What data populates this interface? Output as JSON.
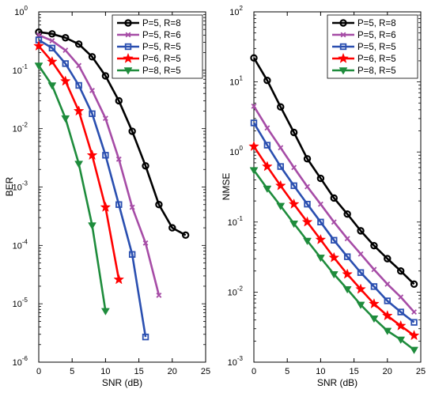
{
  "chart_data": [
    {
      "type": "line",
      "xlabel": "SNR (dB)",
      "ylabel": "BER",
      "xlim": [
        0,
        25
      ],
      "ylim": [
        1e-06,
        1
      ],
      "yscale": "log",
      "xticks": [
        0,
        5,
        10,
        15,
        20,
        25
      ],
      "yticks": [
        {
          "value": 1,
          "base": "10",
          "exp": "0"
        },
        {
          "value": 0.1,
          "base": "10",
          "exp": "-1"
        },
        {
          "value": 0.01,
          "base": "10",
          "exp": "-2"
        },
        {
          "value": 0.001,
          "base": "10",
          "exp": "-3"
        },
        {
          "value": 0.0001,
          "base": "10",
          "exp": "-4"
        },
        {
          "value": 1e-05,
          "base": "10",
          "exp": "-5"
        },
        {
          "value": 1e-06,
          "base": "10",
          "exp": "-6"
        }
      ],
      "legend": "top-right",
      "grid": false,
      "series": [
        {
          "name": "P=5, R=8",
          "color": "#000000",
          "marker": "circle",
          "x": [
            0,
            2,
            4,
            6,
            8,
            10,
            12,
            14,
            16,
            18,
            20,
            22
          ],
          "y": [
            0.45,
            0.42,
            0.36,
            0.28,
            0.17,
            0.08,
            0.03,
            0.009,
            0.0023,
            0.0005,
            0.0002,
            0.00015
          ]
        },
        {
          "name": "P=5, R=6",
          "color": "#a64ca6",
          "marker": "x",
          "x": [
            0,
            2,
            4,
            6,
            8,
            10,
            12,
            14,
            16,
            18
          ],
          "y": [
            0.4,
            0.32,
            0.22,
            0.12,
            0.045,
            0.015,
            0.003,
            0.00045,
            0.00011,
            1.4e-05
          ]
        },
        {
          "name": "P=5, R=5",
          "color": "#2a4fb0",
          "marker": "square",
          "x": [
            0,
            2,
            4,
            6,
            8,
            10,
            12,
            14,
            16
          ],
          "y": [
            0.33,
            0.24,
            0.13,
            0.055,
            0.018,
            0.0035,
            0.0005,
            7e-05,
            2.7e-06
          ]
        },
        {
          "name": "P=6, R=5",
          "color": "#ff0000",
          "marker": "star",
          "x": [
            0,
            2,
            4,
            6,
            8,
            10,
            12
          ],
          "y": [
            0.26,
            0.14,
            0.065,
            0.02,
            0.0035,
            0.00045,
            2.6e-05
          ]
        },
        {
          "name": "P=8, R=5",
          "color": "#1e8c3c",
          "marker": "triangle",
          "x": [
            0,
            2,
            4,
            6,
            8,
            10
          ],
          "y": [
            0.12,
            0.055,
            0.015,
            0.0025,
            0.00022,
            7.5e-06
          ]
        }
      ]
    },
    {
      "type": "line",
      "xlabel": "SNR (dB)",
      "ylabel": "NMSE",
      "xlim": [
        0,
        25
      ],
      "ylim": [
        0.001,
        100
      ],
      "yscale": "log",
      "xticks": [
        0,
        5,
        10,
        15,
        20,
        25
      ],
      "yticks": [
        {
          "value": 100,
          "base": "10",
          "exp": "2"
        },
        {
          "value": 10,
          "base": "10",
          "exp": "1"
        },
        {
          "value": 1,
          "base": "10",
          "exp": "0"
        },
        {
          "value": 0.1,
          "base": "10",
          "exp": "-1"
        },
        {
          "value": 0.01,
          "base": "10",
          "exp": "-2"
        },
        {
          "value": 0.001,
          "base": "10",
          "exp": "-3"
        }
      ],
      "legend": "top-right",
      "grid": false,
      "series": [
        {
          "name": "P=5, R=8",
          "color": "#000000",
          "marker": "circle",
          "x": [
            0,
            2,
            4,
            6,
            8,
            10,
            12,
            14,
            16,
            18,
            20,
            22,
            24
          ],
          "y": [
            22,
            10.5,
            4.4,
            1.9,
            0.8,
            0.42,
            0.22,
            0.13,
            0.075,
            0.046,
            0.03,
            0.02,
            0.013
          ]
        },
        {
          "name": "P=5, R=6",
          "color": "#a64ca6",
          "marker": "x",
          "x": [
            0,
            2,
            4,
            6,
            8,
            10,
            12,
            14,
            16,
            18,
            20,
            22,
            24
          ],
          "y": [
            4.5,
            2.2,
            1.15,
            0.6,
            0.32,
            0.18,
            0.1,
            0.058,
            0.035,
            0.021,
            0.013,
            0.0085,
            0.0052
          ]
        },
        {
          "name": "P=5, R=5",
          "color": "#2a4fb0",
          "marker": "square",
          "x": [
            0,
            2,
            4,
            6,
            8,
            10,
            12,
            14,
            16,
            18,
            20,
            22,
            24
          ],
          "y": [
            2.6,
            1.25,
            0.62,
            0.33,
            0.18,
            0.1,
            0.055,
            0.032,
            0.019,
            0.012,
            0.0075,
            0.0052,
            0.0037
          ]
        },
        {
          "name": "P=6, R=5",
          "color": "#ff0000",
          "marker": "star",
          "x": [
            0,
            2,
            4,
            6,
            8,
            10,
            12,
            14,
            16,
            18,
            20,
            22,
            24
          ],
          "y": [
            1.2,
            0.62,
            0.33,
            0.18,
            0.1,
            0.056,
            0.031,
            0.018,
            0.011,
            0.0068,
            0.0046,
            0.0033,
            0.0024
          ]
        },
        {
          "name": "P=8, R=5",
          "color": "#1e8c3c",
          "marker": "triangle",
          "x": [
            0,
            2,
            4,
            6,
            8,
            10,
            12,
            14,
            16,
            18,
            20,
            22,
            24
          ],
          "y": [
            0.55,
            0.3,
            0.17,
            0.095,
            0.054,
            0.031,
            0.018,
            0.011,
            0.0066,
            0.0042,
            0.0028,
            0.0021,
            0.0015
          ]
        }
      ]
    }
  ]
}
